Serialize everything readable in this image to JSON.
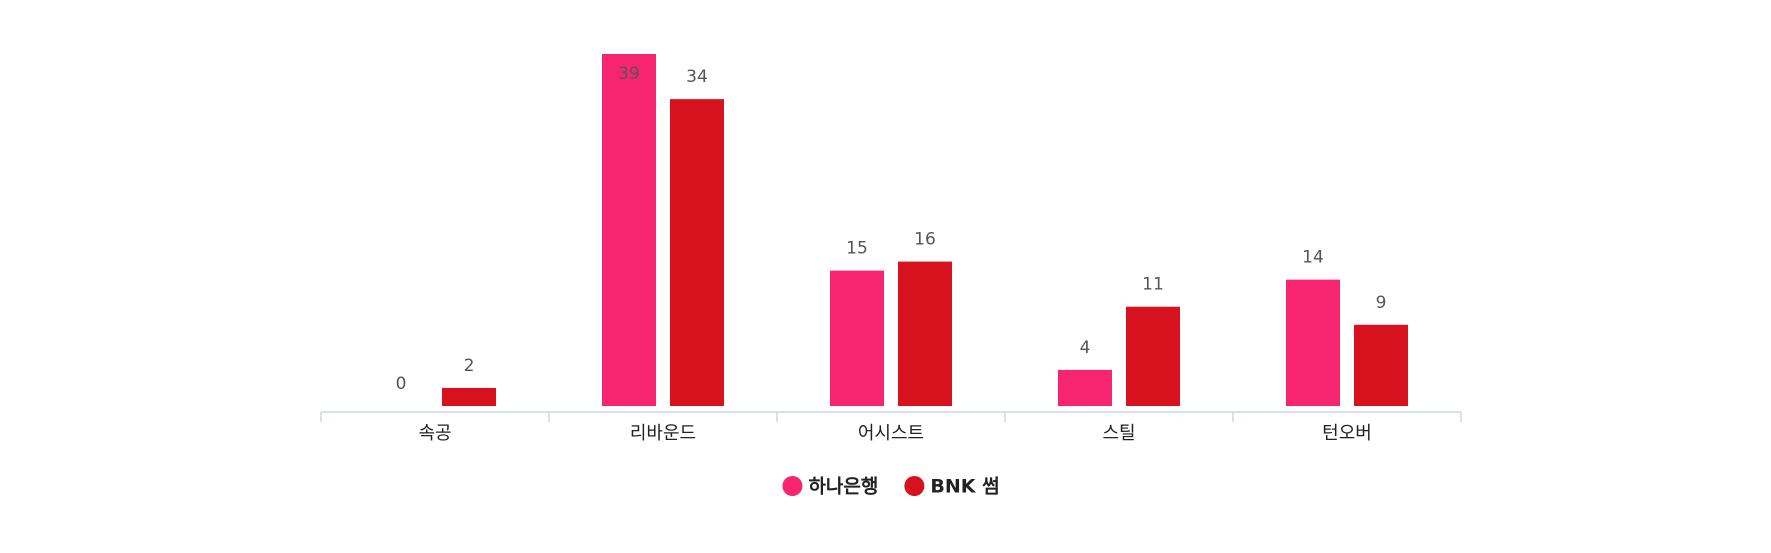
{
  "chart_data": {
    "type": "bar",
    "categories": [
      "속공",
      "리바운드",
      "어시스트",
      "스틸",
      "턴오버"
    ],
    "series": [
      {
        "name": "하나은행",
        "color": "#f72470",
        "values": [
          0,
          39,
          15,
          4,
          14
        ]
      },
      {
        "name": "BNK 썸",
        "color": "#d7111d",
        "values": [
          2,
          34,
          16,
          11,
          9
        ]
      }
    ],
    "legend": "bottom"
  }
}
